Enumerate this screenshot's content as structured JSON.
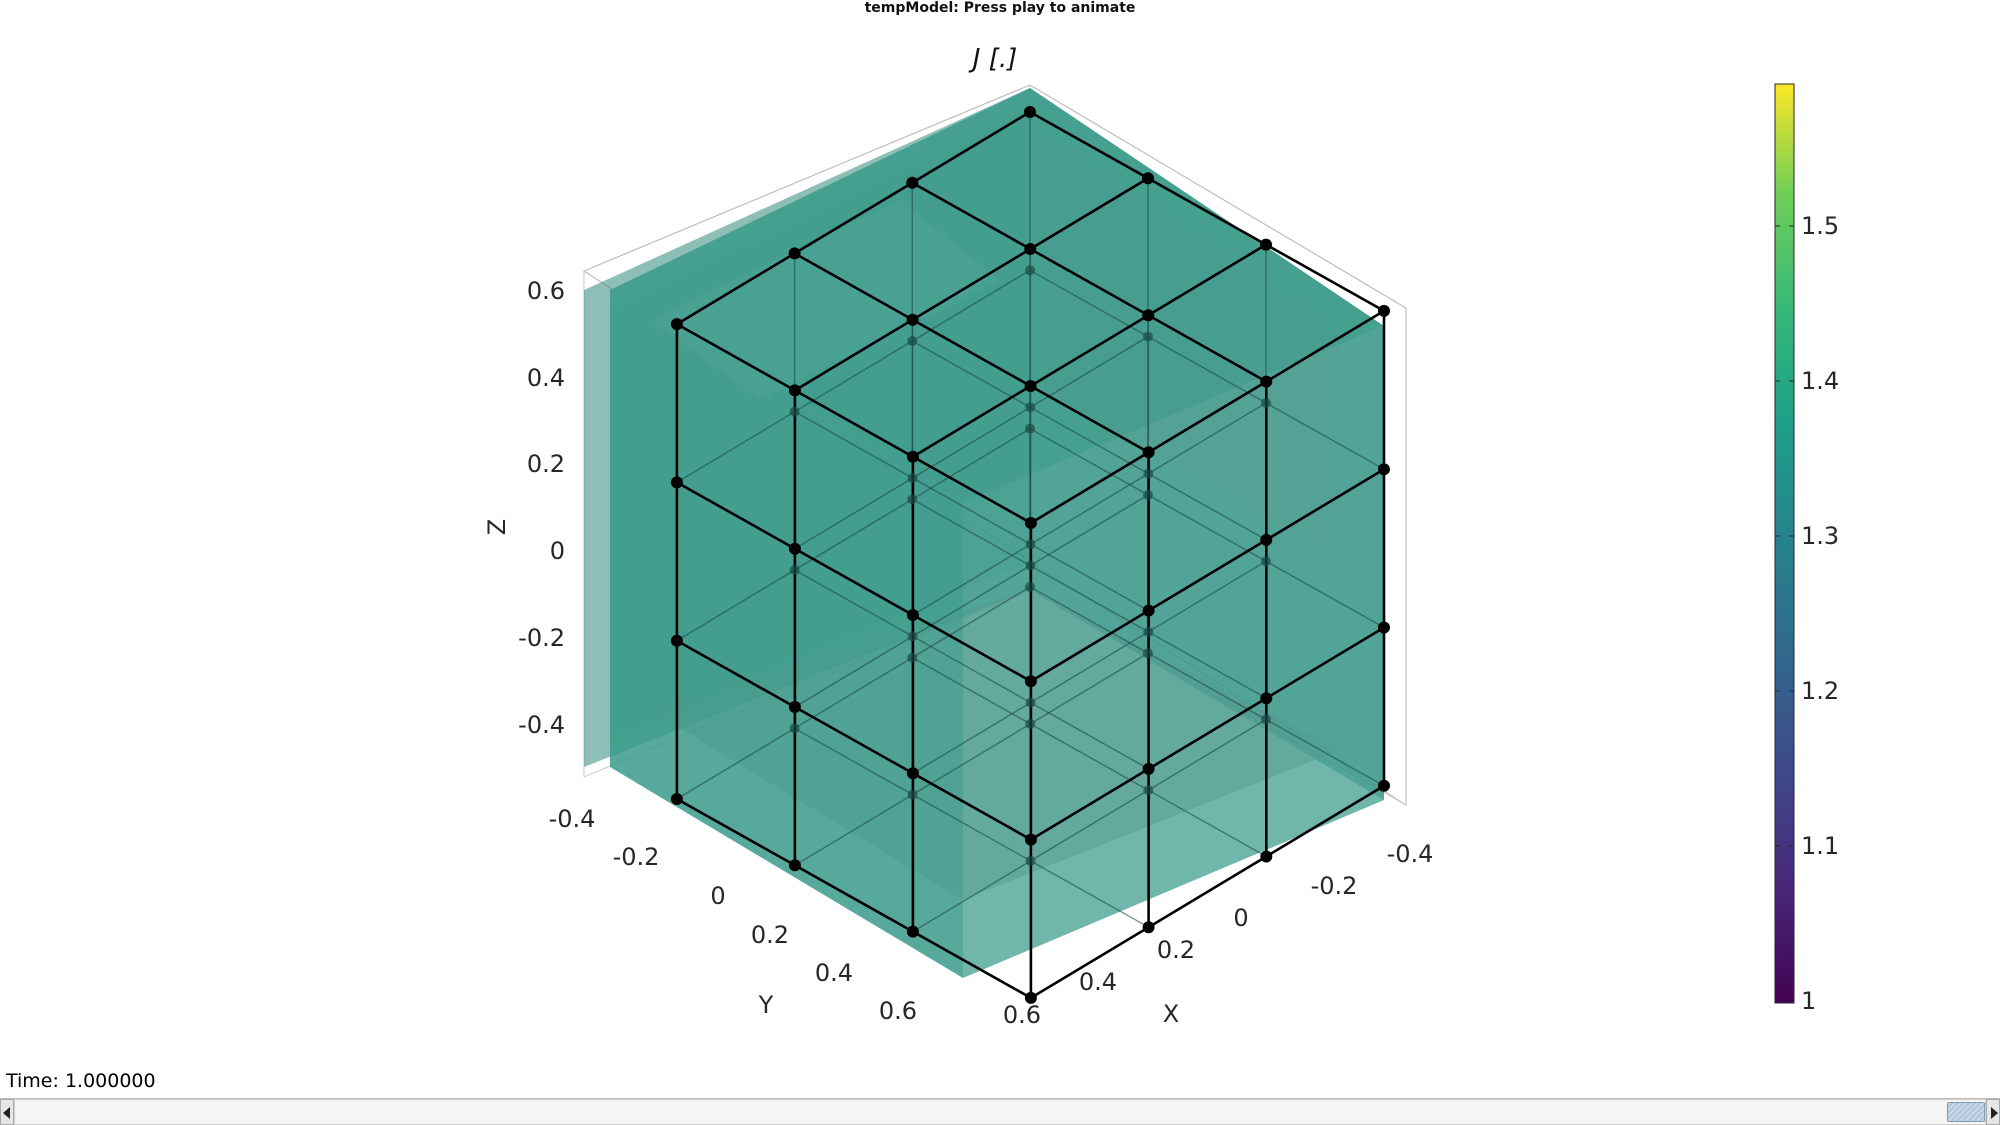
{
  "window": {
    "title": "tempModel: Press play to animate"
  },
  "plot": {
    "title": "J [.]",
    "xlabel": "X",
    "ylabel": "Y",
    "zlabel": "Z",
    "x_ticks": [
      "-0.4",
      "-0.2",
      "0",
      "0.2",
      "0.4",
      "0.6"
    ],
    "y_ticks": [
      "-0.4",
      "-0.2",
      "0",
      "0.2",
      "0.4",
      "0.6"
    ],
    "z_ticks": [
      "0.6",
      "0.4",
      "0.2",
      "0",
      "-0.2",
      "-0.4"
    ],
    "face_color": "#3a9a8a",
    "edge_color": "#000000",
    "grid": true
  },
  "colorbar": {
    "colormap": "viridis",
    "range": [
      1,
      1.59
    ],
    "ticks": [
      "1.5",
      "1.4",
      "1.3",
      "1.2",
      "1.1",
      "1"
    ]
  },
  "status": {
    "time_label": "Time: 1.000000"
  },
  "scrollbar": {
    "position_fraction": 0.98
  }
}
